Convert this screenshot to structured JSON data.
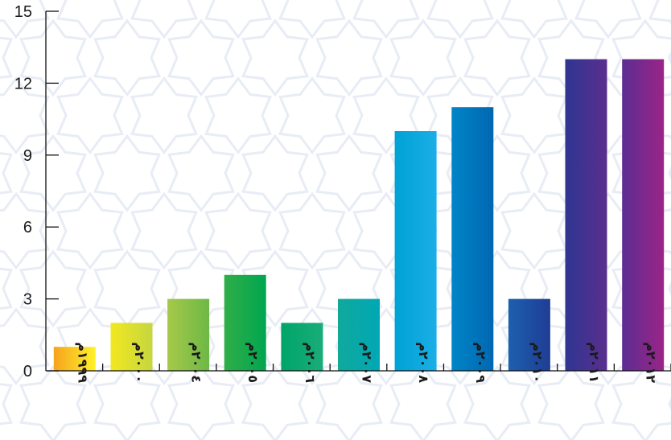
{
  "chart_data": {
    "type": "bar",
    "title": "",
    "xlabel": "",
    "ylabel": "",
    "categories": [
      "١٩٩٩م",
      "٢٠٠٠م",
      "٢٠٠٤م",
      "٢٠٠٥م",
      "٢٠٠٦م",
      "٢٠٠٧م",
      "٢٠٠٨م",
      "٢٠٠٩م",
      "٢٠١٠م",
      "٢٠١١م",
      "٢٠١٢م"
    ],
    "values": [
      1,
      2,
      3,
      4,
      2,
      3,
      10,
      11,
      3,
      13,
      13
    ],
    "ylim": [
      0,
      15
    ],
    "yticks": [
      0,
      3,
      6,
      9,
      12,
      15
    ],
    "grid": false,
    "legend": "none",
    "bar_colors": [
      [
        "#f6a21e",
        "#fff22a"
      ],
      [
        "#f2e81f",
        "#c5d640"
      ],
      [
        "#a6c94a",
        "#6db845"
      ],
      [
        "#2fae49",
        "#00a650"
      ],
      [
        "#00a569",
        "#1aac7a"
      ],
      [
        "#10a99c",
        "#00a7b5"
      ],
      [
        "#00a2d4",
        "#1aaee6"
      ],
      [
        "#0085c7",
        "#0067b1"
      ],
      [
        "#1d5faf",
        "#1f3d94"
      ],
      [
        "#2f3592",
        "#5a2f8e"
      ],
      [
        "#5c2d91",
        "#9b2487"
      ]
    ],
    "background_pattern": "light arabesque star lattice"
  }
}
